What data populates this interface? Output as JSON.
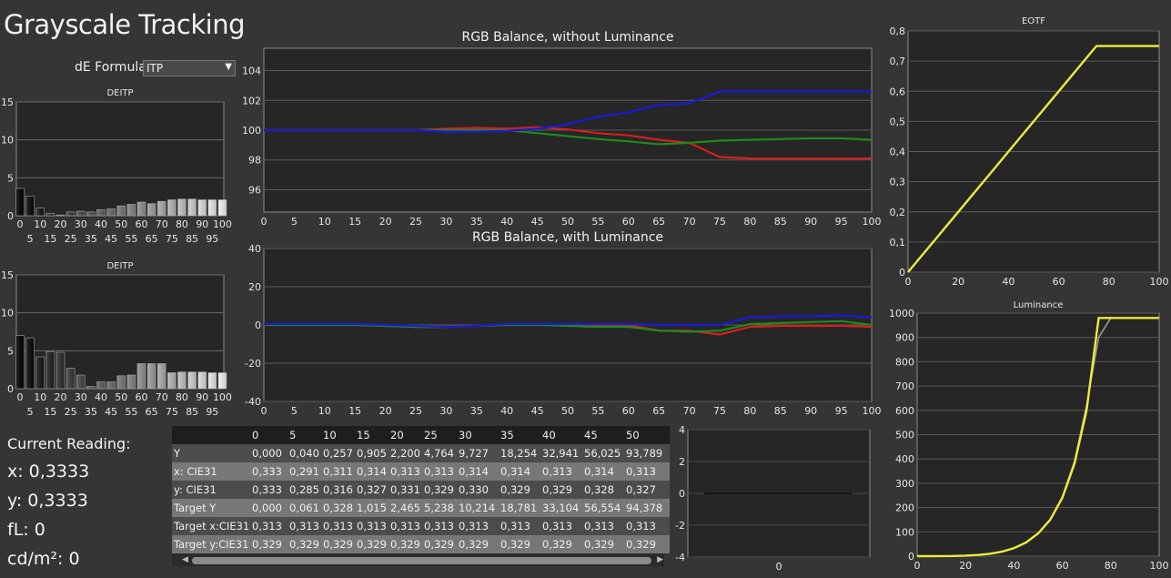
{
  "title": "Grayscale Tracking",
  "formula": {
    "label": "dE Formula:",
    "value": "ITP"
  },
  "colors": {
    "red": "#d81e1e",
    "green": "#1e8a1e",
    "blue": "#1a1ad8",
    "yellow": "#ecec3c",
    "plot_bg": "#262626"
  },
  "de_chart_1": {
    "title": "DEITP",
    "ylim": [
      0,
      15
    ],
    "y_ticks": [
      "0",
      "5",
      "10",
      "15"
    ],
    "x_top": [
      "0",
      "10",
      "20",
      "30",
      "40",
      "50",
      "60",
      "70",
      "80",
      "90",
      "100"
    ],
    "x_bottom": [
      "5",
      "15",
      "25",
      "35",
      "45",
      "55",
      "65",
      "75",
      "85",
      "95"
    ],
    "values": [
      3.6,
      2.6,
      1.0,
      0.3,
      0.1,
      0.5,
      0.6,
      0.5,
      0.8,
      0.9,
      1.3,
      1.5,
      1.8,
      1.6,
      1.9,
      2.1,
      2.2,
      2.2,
      2.1,
      2.1,
      2.1
    ]
  },
  "de_chart_2": {
    "title": "DEITP",
    "ylim": [
      0,
      15
    ],
    "y_ticks": [
      "0",
      "5",
      "10",
      "15"
    ],
    "x_top": [
      "0",
      "10",
      "20",
      "30",
      "40",
      "50",
      "60",
      "70",
      "80",
      "90",
      "100"
    ],
    "x_bottom": [
      "5",
      "15",
      "25",
      "35",
      "45",
      "55",
      "65",
      "75",
      "85",
      "95"
    ],
    "values": [
      7.0,
      6.7,
      4.2,
      4.9,
      4.8,
      2.7,
      1.8,
      0.3,
      0.9,
      0.9,
      1.7,
      1.8,
      3.3,
      3.3,
      3.3,
      2.1,
      2.2,
      2.2,
      2.2,
      2.1,
      2.1
    ]
  },
  "chart_data": [
    {
      "type": "line",
      "title": "RGB Balance, without Luminance",
      "x": [
        0,
        5,
        10,
        15,
        20,
        25,
        30,
        35,
        40,
        45,
        50,
        55,
        60,
        65,
        70,
        75,
        80,
        85,
        90,
        95,
        100
      ],
      "ylim": [
        94.5,
        105.5
      ],
      "y_ticks": [
        "96",
        "98",
        "100",
        "102",
        "104"
      ],
      "series": [
        {
          "color": "red",
          "values": [
            100,
            100,
            100,
            100,
            100,
            100,
            100.1,
            100.15,
            100.1,
            100.2,
            100.05,
            99.8,
            99.65,
            99.35,
            99.15,
            98.2,
            98.1,
            98.1,
            98.1,
            98.1,
            98.1
          ]
        },
        {
          "color": "green",
          "values": [
            100,
            100,
            100,
            100,
            100,
            100,
            100,
            100,
            100,
            99.8,
            99.6,
            99.4,
            99.25,
            99.05,
            99.15,
            99.3,
            99.35,
            99.4,
            99.45,
            99.45,
            99.35
          ]
        },
        {
          "color": "blue",
          "values": [
            100,
            100,
            100,
            100,
            100,
            100,
            99.9,
            99.9,
            99.95,
            100.1,
            100.4,
            100.9,
            101.2,
            101.7,
            101.8,
            102.6,
            102.6,
            102.6,
            102.6,
            102.6,
            102.6
          ]
        }
      ]
    },
    {
      "type": "line",
      "title": "RGB Balance, with Luminance",
      "x": [
        0,
        5,
        10,
        15,
        20,
        25,
        30,
        35,
        40,
        45,
        50,
        55,
        60,
        65,
        70,
        75,
        80,
        85,
        90,
        95,
        100
      ],
      "ylim": [
        -40,
        40
      ],
      "y_ticks": [
        "-40",
        "-20",
        "0",
        "20",
        "40"
      ],
      "series": [
        {
          "color": "red",
          "values": [
            0,
            0,
            0,
            0,
            -0.5,
            -1,
            -1,
            -0.5,
            0,
            0,
            0,
            0,
            0,
            -3,
            -3,
            -5,
            -1,
            -0.5,
            -0.5,
            -0.5,
            -1
          ]
        },
        {
          "color": "green",
          "values": [
            0,
            0,
            0,
            0,
            -0.5,
            -1,
            -1,
            -0.5,
            0,
            0,
            -0.5,
            -1,
            -1,
            -3,
            -3.5,
            -3,
            0.5,
            1,
            1.5,
            2,
            0
          ]
        },
        {
          "color": "blue",
          "values": [
            0.5,
            0.5,
            0.5,
            0.5,
            0,
            -0.5,
            -1,
            -0.5,
            0.5,
            0.5,
            0.5,
            0.5,
            0.5,
            0,
            0,
            0,
            4,
            4.5,
            4.5,
            5,
            4
          ]
        }
      ]
    },
    {
      "type": "line",
      "title": "EOTF",
      "x": [
        0,
        5,
        10,
        15,
        20,
        25,
        30,
        35,
        40,
        45,
        50,
        55,
        60,
        65,
        70,
        75,
        80,
        85,
        90,
        95,
        100
      ],
      "ylim": [
        0,
        0.8
      ],
      "xlim": [
        0,
        100
      ],
      "y_ticks": [
        "0",
        "0,1",
        "0,2",
        "0,3",
        "0,4",
        "0,5",
        "0,6",
        "0,7",
        "0,8"
      ],
      "x_ticks": [
        "0",
        "20",
        "40",
        "60",
        "80",
        "100"
      ],
      "series": [
        {
          "color": "yellow",
          "values": [
            0,
            0.05,
            0.1,
            0.15,
            0.2,
            0.25,
            0.3,
            0.35,
            0.4,
            0.45,
            0.5,
            0.55,
            0.6,
            0.65,
            0.7,
            0.75,
            0.75,
            0.75,
            0.75,
            0.75,
            0.75
          ]
        },
        {
          "color": "gray",
          "values": [
            0,
            0.05,
            0.1,
            0.15,
            0.2,
            0.25,
            0.3,
            0.35,
            0.4,
            0.45,
            0.5,
            0.55,
            0.6,
            0.65,
            0.7,
            0.75,
            0.75,
            0.75,
            0.75,
            0.75,
            0.75
          ]
        }
      ]
    },
    {
      "type": "line",
      "title": "Luminance",
      "x": [
        0,
        5,
        10,
        15,
        20,
        25,
        30,
        35,
        40,
        45,
        50,
        55,
        60,
        65,
        70,
        75,
        80,
        85,
        90,
        95,
        100
      ],
      "ylim": [
        0,
        1000
      ],
      "xlim": [
        0,
        100
      ],
      "y_ticks": [
        "0",
        "100",
        "200",
        "300",
        "400",
        "500",
        "600",
        "700",
        "800",
        "900",
        "1000"
      ],
      "x_ticks": [
        "0",
        "20",
        "40",
        "60",
        "80",
        "100"
      ],
      "series": [
        {
          "color": "yellow",
          "values": [
            0,
            0.04,
            0.26,
            0.9,
            2.2,
            4.8,
            9.7,
            18.3,
            32.9,
            56,
            93.8,
            150,
            240,
            380,
            600,
            980,
            980,
            980,
            980,
            980,
            980
          ]
        },
        {
          "color": "gray",
          "values": [
            0,
            0.06,
            0.33,
            1.0,
            2.5,
            5.2,
            10.2,
            18.8,
            33.1,
            56.6,
            94.4,
            152,
            245,
            390,
            620,
            900,
            980,
            980,
            980,
            980,
            980
          ]
        }
      ]
    },
    {
      "type": "line",
      "title": "",
      "ylim": [
        -4,
        4
      ],
      "y_ticks": [
        "-4",
        "-2",
        "0",
        "2",
        "4"
      ],
      "x_ticks": [
        "0"
      ],
      "series": []
    }
  ],
  "table": {
    "columns": [
      "",
      "0",
      "5",
      "10",
      "15",
      "20",
      "25",
      "30",
      "35",
      "40",
      "45",
      "50"
    ],
    "rows": [
      [
        "Y",
        "0,000",
        "0,040",
        "0,257",
        "0,905",
        "2,200",
        "4,764",
        "9,727",
        "18,254",
        "32,941",
        "56,025",
        "93,789"
      ],
      [
        "x: CIE31",
        "0,333",
        "0,291",
        "0,311",
        "0,314",
        "0,313",
        "0,313",
        "0,314",
        "0,314",
        "0,313",
        "0,314",
        "0,313"
      ],
      [
        "y: CIE31",
        "0,333",
        "0,285",
        "0,316",
        "0,327",
        "0,331",
        "0,329",
        "0,330",
        "0,329",
        "0,329",
        "0,328",
        "0,327"
      ],
      [
        "Target Y",
        "0,000",
        "0,061",
        "0,328",
        "1,015",
        "2,465",
        "5,238",
        "10,214",
        "18,781",
        "33,104",
        "56,554",
        "94,378"
      ],
      [
        "Target x:CIE31",
        "0,313",
        "0,313",
        "0,313",
        "0,313",
        "0,313",
        "0,313",
        "0,313",
        "0,313",
        "0,313",
        "0,313",
        "0,313"
      ],
      [
        "Target y:CIE31",
        "0,329",
        "0,329",
        "0,329",
        "0,329",
        "0,329",
        "0,329",
        "0,329",
        "0,329",
        "0,329",
        "0,329",
        "0,329"
      ]
    ]
  },
  "reading": {
    "heading": "Current Reading:",
    "x": "x: 0,3333",
    "y": "y: 0,3333",
    "fl": "fL: 0",
    "cd": "cd/m²: 0"
  }
}
